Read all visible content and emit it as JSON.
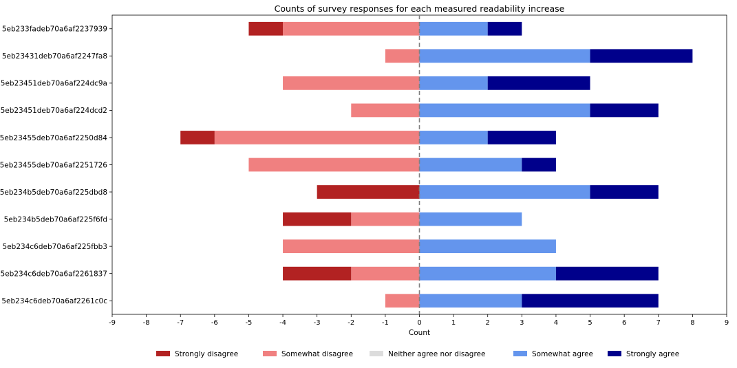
{
  "chart_data": {
    "type": "bar",
    "orientation": "horizontal-diverging",
    "title": "Counts of survey responses for each measured readability increase",
    "xlabel": "Count",
    "ylabel": "",
    "xlim": [
      -9,
      9
    ],
    "xticks": [
      -9,
      -8,
      -7,
      -6,
      -5,
      -4,
      -3,
      -2,
      -1,
      0,
      1,
      2,
      3,
      4,
      5,
      6,
      7,
      8,
      9
    ],
    "grid": false,
    "zero_line": "dashed",
    "legend_position": "bottom",
    "categories": [
      "5eb233fadeb70a6af2237939",
      "5eb23431deb70a6af2247fa8",
      "5eb23451deb70a6af224dc9a",
      "5eb23451deb70a6af224dcd2",
      "5eb23455deb70a6af2250d84",
      "5eb23455deb70a6af2251726",
      "5eb234b5deb70a6af225dbd8",
      "5eb234b5deb70a6af225f6fd",
      "5eb234c6deb70a6af225fbb3",
      "5eb234c6deb70a6af2261837",
      "5eb234c6deb70a6af2261c0c"
    ],
    "series": [
      {
        "name": "Strongly disagree",
        "color": "#b22222",
        "side": "negative",
        "values": [
          1,
          0,
          0,
          0,
          1,
          0,
          3,
          2,
          0,
          2,
          0
        ]
      },
      {
        "name": "Somewhat disagree",
        "color": "#f08080",
        "side": "negative",
        "values": [
          4,
          1,
          4,
          2,
          6,
          5,
          0,
          2,
          4,
          2,
          1
        ]
      },
      {
        "name": "Neither agree nor disagree",
        "color": "#dcdcdc",
        "side": "neutral",
        "values": [
          0,
          0,
          0,
          0,
          0,
          0,
          0,
          0,
          0,
          0,
          0
        ]
      },
      {
        "name": "Somewhat agree",
        "color": "#6495ed",
        "side": "positive",
        "values": [
          2,
          5,
          2,
          5,
          2,
          3,
          5,
          3,
          4,
          4,
          3
        ]
      },
      {
        "name": "Strongly agree",
        "color": "#00008b",
        "side": "positive",
        "values": [
          1,
          3,
          3,
          2,
          2,
          1,
          2,
          0,
          0,
          3,
          4
        ]
      }
    ]
  }
}
